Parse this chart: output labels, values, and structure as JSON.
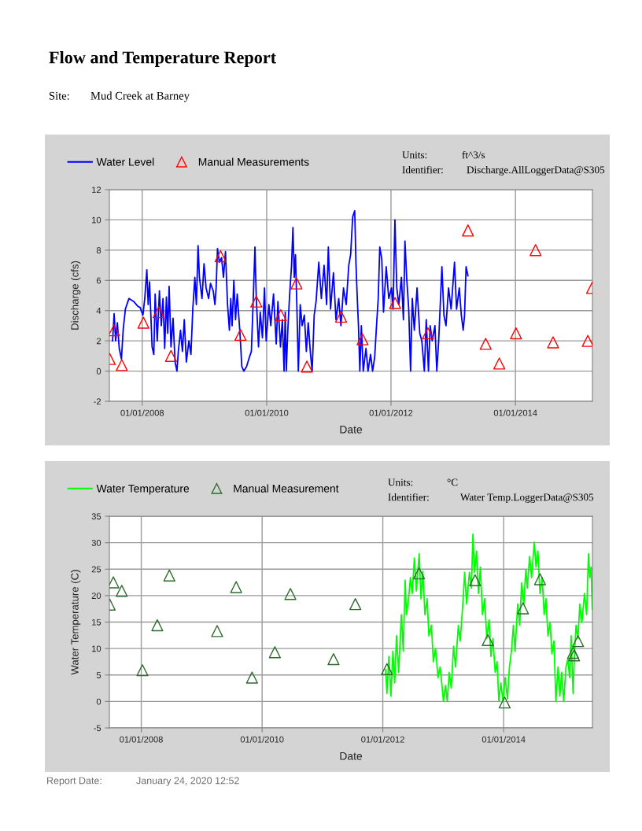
{
  "chart_data": [
    {
      "type": "line",
      "title": "Flow and Temperature Report",
      "xlabel": "Date",
      "ylabel": "Discharge (cfs)",
      "xlim": [
        "2007-06-22",
        "2015-03-29"
      ],
      "ylim": [
        -2,
        12
      ],
      "xticks": [
        {
          "value": "2008-01-01",
          "label": "01/01/2008"
        },
        {
          "value": "2010-01-01",
          "label": "01/01/2010"
        },
        {
          "value": "2012-01-01",
          "label": "01/01/2012"
        },
        {
          "value": "2014-01-01",
          "label": "01/01/2014"
        }
      ],
      "yticks": [
        -2,
        0,
        2,
        4,
        6,
        8,
        10,
        12
      ],
      "grid": true,
      "legend": "top left",
      "annotations": [
        "Site:",
        "Mud Creek at Barney",
        "Units:",
        "ft^3/s",
        "Identifier:",
        "Discharge.AllLoggerData@S305"
      ],
      "series": [
        {
          "name": "Water Level",
          "color": "#0000ff",
          "x": [
            "2007-07-11",
            "2007-07-20",
            "2007-07-29",
            "2007-08-08",
            "2007-08-19",
            "2007-09-01",
            "2007-09-11",
            "2007-09-24",
            "2007-10-15",
            "2007-11-12",
            "2007-12-05",
            "2007-12-20",
            "2008-01-05",
            "2008-01-16",
            "2008-01-28",
            "2008-02-05",
            "2008-02-13",
            "2008-02-28",
            "2008-03-09",
            "2008-03-17",
            "2008-03-29",
            "2008-04-11",
            "2008-04-22",
            "2008-05-02",
            "2008-05-12",
            "2008-05-22",
            "2008-05-30",
            "2008-06-07",
            "2008-06-18",
            "2008-06-30",
            "2008-07-12",
            "2008-07-23",
            "2008-07-31",
            "2008-08-13",
            "2008-08-24",
            "2008-09-04",
            "2008-09-16",
            "2008-10-01",
            "2008-10-13",
            "2008-10-24",
            "2008-11-05",
            "2008-11-14",
            "2008-11-24",
            "2008-12-02",
            "2008-12-17",
            "2008-12-29",
            "2009-01-10",
            "2009-01-25",
            "2009-02-05",
            "2009-02-21",
            "2009-03-03",
            "2009-03-10",
            "2009-03-18",
            "2009-03-29",
            "2009-04-11",
            "2009-04-22",
            "2009-05-04",
            "2009-05-16",
            "2009-05-27",
            "2009-06-04",
            "2009-06-12",
            "2009-06-22",
            "2009-07-02",
            "2009-07-12",
            "2009-07-28",
            "2009-08-08",
            "2009-08-20",
            "2009-09-05",
            "2009-09-21",
            "2009-10-03",
            "2009-10-13",
            "2009-10-24",
            "2009-11-01",
            "2009-11-14",
            "2009-11-24",
            "2009-12-07",
            "2009-12-19",
            "2009-12-29",
            "2010-01-14",
            "2010-01-25",
            "2010-02-10",
            "2010-02-26",
            "2010-03-08",
            "2010-03-23",
            "2010-04-03",
            "2010-04-13",
            "2010-04-20",
            "2010-04-26",
            "2010-05-05",
            "2010-05-16",
            "2010-05-27",
            "2010-06-04",
            "2010-06-12",
            "2010-06-19",
            "2010-06-27",
            "2010-07-06",
            "2010-07-17",
            "2010-07-28",
            "2010-08-10",
            "2010-08-22",
            "2010-09-02",
            "2010-09-14",
            "2010-09-25",
            "2010-10-07",
            "2010-10-18",
            "2010-11-03",
            "2010-11-18",
            "2010-12-04",
            "2010-12-19",
            "2010-12-29",
            "2011-01-11",
            "2011-01-28",
            "2011-02-12",
            "2011-02-28",
            "2011-03-13",
            "2011-03-28",
            "2011-04-13",
            "2011-04-28",
            "2011-05-09",
            "2011-05-21",
            "2011-06-02",
            "2011-06-09",
            "2011-06-17",
            "2011-06-24",
            "2011-07-02",
            "2011-07-11",
            "2011-07-22",
            "2011-08-07",
            "2011-08-19",
            "2011-09-03",
            "2011-09-15",
            "2011-09-27",
            "2011-10-08",
            "2011-10-18",
            "2011-10-27",
            "2011-11-08",
            "2011-11-18",
            "2011-12-04",
            "2011-12-19",
            "2012-01-04",
            "2012-01-13",
            "2012-01-24",
            "2012-02-04",
            "2012-02-16",
            "2012-03-02",
            "2012-03-14",
            "2012-03-23",
            "2012-04-02",
            "2012-04-14",
            "2012-04-25",
            "2012-05-05",
            "2012-05-17",
            "2012-06-02",
            "2012-06-18",
            "2012-06-30",
            "2012-07-15",
            "2012-07-26",
            "2012-08-08",
            "2012-08-18",
            "2012-08-30",
            "2012-09-15",
            "2012-09-26",
            "2012-10-07",
            "2012-10-26",
            "2012-11-07",
            "2012-11-19",
            "2012-12-04",
            "2012-12-19",
            "2013-01-08",
            "2013-01-20",
            "2013-02-05",
            "2013-02-17",
            "2013-02-28",
            "2013-03-08",
            "2013-03-17",
            "2013-03-28"
          ],
          "values": [
            2.0,
            3.8,
            2.0,
            3.2,
            1.5,
            0.8,
            2.7,
            4.1,
            4.8,
            4.6,
            4.3,
            4.2,
            3.7,
            4.8,
            6.7,
            4.4,
            5.9,
            1.6,
            1.1,
            5.1,
            2.0,
            5.3,
            3.0,
            4.8,
            1.5,
            4.9,
            2.5,
            5.6,
            1.6,
            3.5,
            0.6,
            0,
            1.3,
            2.7,
            1.3,
            3.4,
            0.6,
            2.0,
            1.1,
            4.1,
            6.2,
            4.4,
            8.3,
            6.2,
            4.8,
            7.1,
            5.5,
            4.8,
            5.8,
            5.3,
            4.4,
            5.5,
            8.1,
            7.2,
            7.5,
            6.2,
            7.9,
            4.4,
            2.7,
            4.8,
            3.0,
            6.0,
            3.4,
            5.1,
            2.5,
            0.3,
            0,
            0.3,
            0.9,
            1.3,
            4.4,
            8.2,
            4.8,
            1.6,
            3.9,
            2.2,
            5.5,
            2.0,
            4.4,
            3.0,
            5.1,
            1.8,
            4.6,
            1.6,
            3.4,
            0,
            3.9,
            0,
            2.7,
            5.1,
            7.0,
            9.5,
            6.2,
            7.7,
            4.4,
            0,
            4.4,
            3.0,
            3.7,
            1.3,
            3.2,
            1.3,
            0,
            3.7,
            4.6,
            7.2,
            4.8,
            7.0,
            4.4,
            8.2,
            4.1,
            6.5,
            3.4,
            4.8,
            3.0,
            5.5,
            4.4,
            7.0,
            7.7,
            10.2,
            10.6,
            7.2,
            4.8,
            3.0,
            0,
            3.0,
            0,
            1.5,
            0,
            1.1,
            0,
            0.9,
            3.0,
            4.8,
            8.2,
            7.4,
            3.9,
            6.9,
            4.8,
            5.5,
            4.1,
            10.0,
            5.5,
            4.4,
            6.2,
            3.4,
            8.6,
            6.2,
            4.1,
            0,
            4.8,
            2.7,
            5.5,
            2.5,
            2.0,
            0,
            3.4,
            0,
            3.0,
            2.0,
            3.0,
            0,
            2.0,
            6.9,
            3.7,
            3.0,
            5.5,
            4.1,
            7.2,
            4.1,
            5.5,
            3.7,
            2.7,
            3.7,
            6.9,
            6.3
          ]
        },
        {
          "name": "Manual Measurements",
          "type": "scatter",
          "marker": "triangle",
          "color": "#ff0000",
          "x": [
            "2007-06-24",
            "2007-07-19",
            "2007-09-03",
            "2008-01-08",
            "2008-04-07",
            "2008-06-18",
            "2009-04-05",
            "2009-07-31",
            "2009-11-01",
            "2010-03-25",
            "2010-06-25",
            "2010-08-25",
            "2011-03-14",
            "2011-07-18",
            "2012-01-25",
            "2012-08-05",
            "2013-03-28",
            "2013-07-10",
            "2013-09-28",
            "2014-01-04",
            "2014-04-29",
            "2014-08-10",
            "2015-03-02",
            "2015-03-27"
          ],
          "values": [
            0.8,
            2.7,
            0.4,
            3.2,
            3.9,
            1.0,
            7.6,
            2.4,
            4.6,
            3.7,
            5.8,
            0.3,
            3.6,
            2.1,
            4.5,
            2.5,
            9.3,
            1.8,
            0.5,
            2.5,
            8.0,
            1.9,
            2.0,
            5.5
          ]
        }
      ]
    },
    {
      "type": "line",
      "xlabel": "Date",
      "ylabel": "Water Temperature (C)",
      "xlim": [
        "2007-06-22",
        "2015-06-22"
      ],
      "ylim": [
        -5,
        35
      ],
      "xticks": [
        {
          "value": "2008-01-01",
          "label": "01/01/2008"
        },
        {
          "value": "2010-01-01",
          "label": "01/01/2010"
        },
        {
          "value": "2012-01-01",
          "label": "01/01/2012"
        },
        {
          "value": "2014-01-01",
          "label": "01/01/2014"
        }
      ],
      "yticks": [
        -5,
        0,
        5,
        10,
        15,
        20,
        25,
        30,
        35
      ],
      "grid": true,
      "legend": "top left",
      "annotations": [
        "Units:",
        "°C",
        "Identifier:",
        "Water Temp.LoggerData@S305",
        "Report Date:",
        "January 24, 2020 12:52"
      ],
      "series": [
        {
          "name": "Water Temperature",
          "color": "#00ff00",
          "x": [
            "2012-01-18",
            "2012-01-26",
            "2012-02-07",
            "2012-02-19",
            "2012-03-02",
            "2012-03-13",
            "2012-03-24",
            "2012-04-06",
            "2012-04-22",
            "2012-05-04",
            "2012-05-15",
            "2012-05-23",
            "2012-06-05",
            "2012-06-16",
            "2012-06-27",
            "2012-07-10",
            "2012-07-22",
            "2012-08-08",
            "2012-08-19",
            "2012-08-30",
            "2012-09-12",
            "2012-09-25",
            "2012-10-06",
            "2012-10-21",
            "2012-11-02",
            "2012-11-15",
            "2012-11-30",
            "2012-12-13",
            "2013-01-02",
            "2013-01-14",
            "2013-01-25",
            "2013-02-06",
            "2013-02-18",
            "2013-03-04",
            "2013-03-16",
            "2013-04-02",
            "2013-04-13",
            "2013-04-29",
            "2013-05-10",
            "2013-05-22",
            "2013-06-08",
            "2013-06-20",
            "2013-06-29",
            "2013-07-09",
            "2013-07-21",
            "2013-08-02",
            "2013-08-13",
            "2013-08-26",
            "2013-09-08",
            "2013-09-21",
            "2013-10-05",
            "2013-10-16",
            "2013-10-28",
            "2013-11-11",
            "2013-11-22",
            "2013-12-03",
            "2013-12-15",
            "2013-12-28",
            "2014-01-10",
            "2014-01-24",
            "2014-02-05",
            "2014-02-17",
            "2014-03-01",
            "2014-03-11",
            "2014-03-27",
            "2014-04-08",
            "2014-04-20",
            "2014-05-03",
            "2014-05-15",
            "2014-05-24",
            "2014-06-07",
            "2014-06-19",
            "2014-07-05",
            "2014-07-16",
            "2014-07-27",
            "2014-08-09",
            "2014-08-22",
            "2014-09-03",
            "2014-09-14",
            "2014-09-26",
            "2014-10-09",
            "2014-10-20",
            "2014-11-01",
            "2014-11-13",
            "2014-11-26",
            "2014-12-07",
            "2014-12-18",
            "2014-12-30",
            "2015-01-13",
            "2015-01-24",
            "2015-02-04",
            "2015-02-13",
            "2015-02-25",
            "2015-03-06",
            "2015-03-15",
            "2015-03-26",
            "2015-04-07",
            "2015-04-19",
            "2015-05-05",
            "2015-05-18",
            "2015-05-29",
            "2015-06-06",
            "2015-06-14",
            "2015-06-21"
          ],
          "values": [
            6.0,
            1.5,
            8.5,
            1.0,
            9.5,
            3.5,
            12.4,
            5.5,
            16.4,
            9.5,
            22.9,
            16.4,
            19.4,
            23.4,
            20.4,
            27.1,
            20.9,
            27.9,
            19.4,
            24.6,
            16.4,
            19.4,
            12.4,
            14.4,
            7.5,
            10.0,
            4.5,
            6.5,
            0,
            3.0,
            0,
            5.5,
            2.5,
            10.4,
            6.5,
            14.4,
            11.4,
            18.4,
            24.4,
            18.4,
            24.4,
            21.4,
            31.6,
            24.4,
            28.4,
            20.4,
            25.4,
            16.4,
            19.4,
            11.9,
            15.4,
            8.5,
            11.9,
            5.5,
            7.5,
            0,
            3.5,
            0,
            4.5,
            0.5,
            6.5,
            9.5,
            14.4,
            9.5,
            18.4,
            14.4,
            22.4,
            18.4,
            24.9,
            21.4,
            27.4,
            23.4,
            30.1,
            25.4,
            28.4,
            20.4,
            23.4,
            16.4,
            19.4,
            12.4,
            14.9,
            9.0,
            11.4,
            0,
            6.5,
            1.0,
            5.5,
            0,
            6.5,
            8.0,
            4.5,
            12.4,
            1.5,
            9.5,
            14.4,
            11.9,
            18.4,
            14.9,
            20.4,
            16.4,
            27.9,
            23.4,
            25.4,
            17.4
          ]
        },
        {
          "name": "Manual Measurement",
          "type": "scatter",
          "marker": "triangle",
          "color": "#2e6b2e",
          "x": [
            "2007-06-24",
            "2007-07-16",
            "2007-09-05",
            "2008-01-08",
            "2008-04-07",
            "2008-06-19",
            "2009-04-04",
            "2009-07-28",
            "2009-11-01",
            "2010-03-19",
            "2010-06-21",
            "2011-03-09",
            "2011-07-19",
            "2012-01-26",
            "2012-08-07",
            "2013-07-12",
            "2013-09-27",
            "2014-01-07",
            "2014-04-28",
            "2014-08-09",
            "2015-02-25",
            "2015-03-03",
            "2015-03-27"
          ],
          "values": [
            18.3,
            22.5,
            20.9,
            5.9,
            14.4,
            23.8,
            13.3,
            21.6,
            4.5,
            9.3,
            20.3,
            8.0,
            18.4,
            6.1,
            24.2,
            22.9,
            11.6,
            -0.2,
            17.6,
            23.1,
            9.2,
            8.7,
            11.4
          ]
        }
      ]
    }
  ]
}
